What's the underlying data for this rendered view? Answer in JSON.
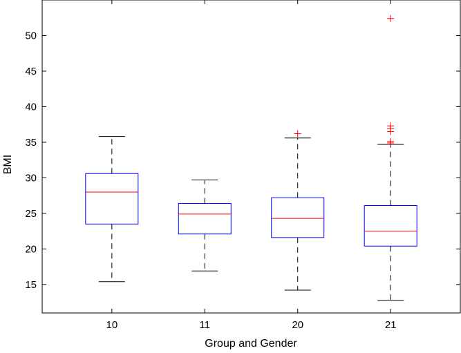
{
  "chart_data": {
    "type": "boxplot",
    "title": "",
    "xlabel": "Group and Gender",
    "ylabel": "BMI",
    "ylim": [
      11,
      55
    ],
    "yticks": [
      15,
      20,
      25,
      30,
      35,
      40,
      45,
      50
    ],
    "grid": false,
    "categories": [
      "10",
      "11",
      "20",
      "21"
    ],
    "boxes": [
      {
        "category": "10",
        "whisker_low": 15.4,
        "q1": 23.5,
        "median": 28.0,
        "q3": 30.6,
        "whisker_high": 35.8,
        "outliers": []
      },
      {
        "category": "11",
        "whisker_low": 16.9,
        "q1": 22.1,
        "median": 24.9,
        "q3": 26.4,
        "whisker_high": 29.7,
        "outliers": []
      },
      {
        "category": "20",
        "whisker_low": 14.2,
        "q1": 21.6,
        "median": 24.3,
        "q3": 27.2,
        "whisker_high": 35.6,
        "outliers": [
          36.2
        ]
      },
      {
        "category": "21",
        "whisker_low": 12.8,
        "q1": 20.4,
        "median": 22.5,
        "q3": 26.1,
        "whisker_high": 34.7,
        "outliers": [
          34.9,
          35.1,
          36.5,
          36.9,
          37.3,
          52.4
        ]
      }
    ],
    "colors": {
      "box": "#0000ff",
      "median": "#ff0000",
      "whisker": "#000000",
      "outlier": "#ff0000",
      "axes": "#000000"
    }
  }
}
